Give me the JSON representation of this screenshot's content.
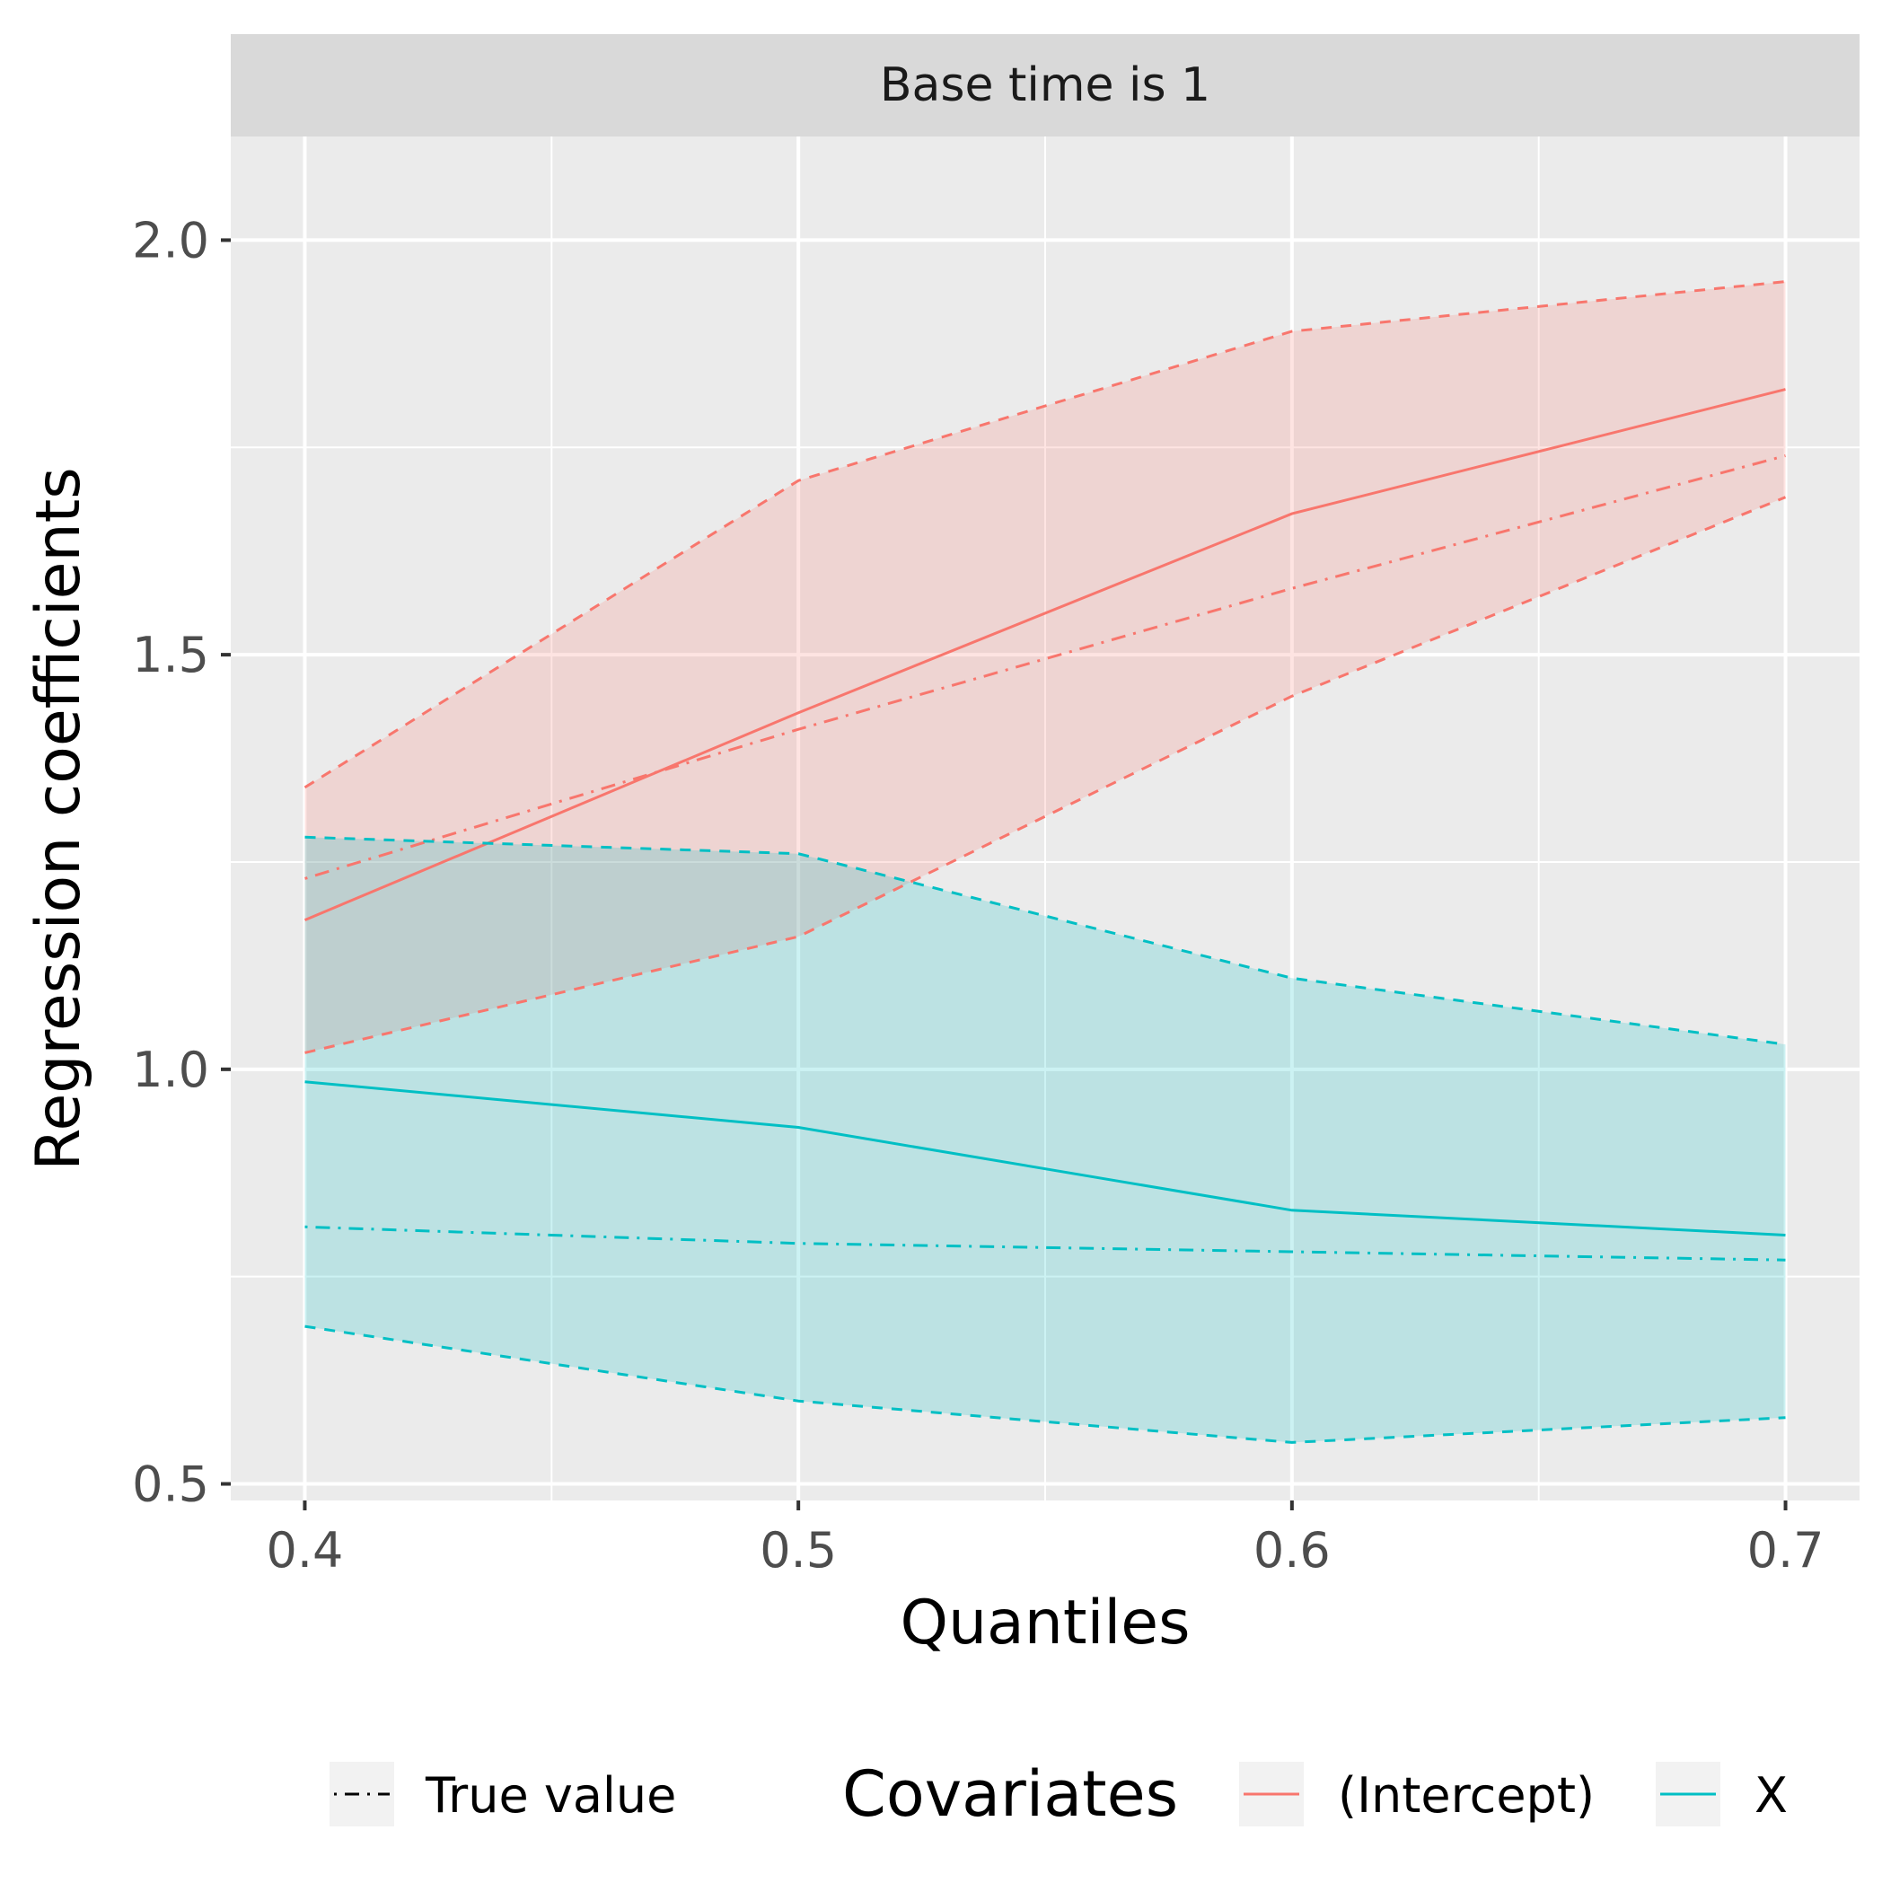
{
  "chart_data": {
    "type": "line",
    "facet_label": "Base time is 1",
    "xlabel": "Quantiles",
    "ylabel": "Regression coefficients",
    "xlim": [
      0.385,
      0.715
    ],
    "ylim": [
      0.48,
      2.125
    ],
    "x_ticks": [
      {
        "value": 0.4,
        "label": "0.4"
      },
      {
        "value": 0.5,
        "label": "0.5"
      },
      {
        "value": 0.6,
        "label": "0.6"
      },
      {
        "value": 0.7,
        "label": "0.7"
      }
    ],
    "x_minor": [
      0.45,
      0.55,
      0.65
    ],
    "y_ticks": [
      {
        "value": 0.5,
        "label": "0.5"
      },
      {
        "value": 1.0,
        "label": "1.0"
      },
      {
        "value": 1.5,
        "label": "1.5"
      },
      {
        "value": 2.0,
        "label": "2.0"
      }
    ],
    "y_minor": [
      0.75,
      1.25,
      1.75
    ],
    "x": [
      0.4,
      0.5,
      0.6,
      0.7
    ],
    "series": [
      {
        "name": "(Intercept)",
        "color": "#F8766D",
        "estimate": [
          1.18,
          1.43,
          1.67,
          1.82
        ],
        "lower": [
          1.02,
          1.16,
          1.45,
          1.69
        ],
        "upper": [
          1.34,
          1.71,
          1.89,
          1.95
        ],
        "true_value": [
          1.23,
          1.41,
          1.58,
          1.74
        ]
      },
      {
        "name": "X",
        "color": "#00BFC4",
        "estimate": [
          0.985,
          0.93,
          0.83,
          0.8
        ],
        "lower": [
          0.69,
          0.6,
          0.55,
          0.58
        ],
        "upper": [
          1.28,
          1.26,
          1.11,
          1.03
        ],
        "true_value": [
          0.81,
          0.79,
          0.78,
          0.77
        ]
      }
    ],
    "legend": {
      "position": "bottom",
      "linetype_entry": "True value",
      "color_title": "Covariates",
      "color_entries": [
        "(Intercept)",
        "X"
      ]
    }
  }
}
